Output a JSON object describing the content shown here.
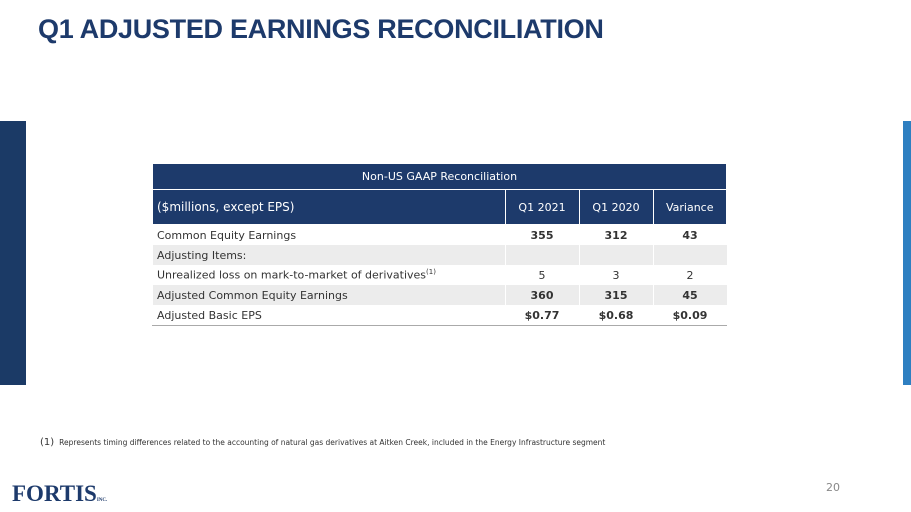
{
  "title": "Q1 ADJUSTED EARNINGS RECONCILIATION",
  "table": {
    "caption": "Non-US GAAP Reconciliation",
    "headers": [
      "($millions, except EPS)",
      "Q1 2021",
      "Q1 2020",
      "Variance"
    ],
    "rows": [
      {
        "label": "Common Equity Earnings",
        "values": [
          "355",
          "312",
          "43"
        ]
      },
      {
        "label": "Adjusting Items:",
        "values": [
          "",
          "",
          ""
        ]
      },
      {
        "label": "Unrealized loss on mark-to-market of derivatives",
        "sup": "(1)",
        "values": [
          "5",
          "3",
          "2"
        ]
      },
      {
        "label": "Adjusted Common Equity Earnings",
        "values": [
          "360",
          "315",
          "45"
        ]
      },
      {
        "label": "Adjusted Basic EPS",
        "values": [
          "$0.77",
          "$0.68",
          "$0.09"
        ]
      }
    ]
  },
  "footnote": {
    "marker": "(1)",
    "text": "Represents timing differences related to the accounting of natural gas derivatives at Aitken Creek, included in the Energy Infrastructure segment"
  },
  "page_number": "20",
  "logo": {
    "text": "FORTIS",
    "suffix": "INC."
  },
  "colors": {
    "navy": "#1d3a6b",
    "accent": "#2e7fc1"
  }
}
